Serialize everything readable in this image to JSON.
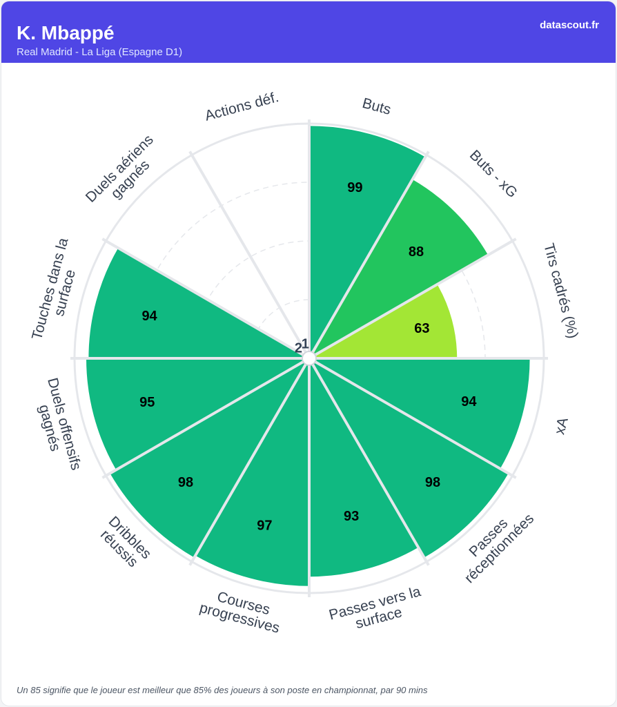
{
  "header": {
    "player": "K. Mbappé",
    "team_league": "Real Madrid - La Liga (Espagne D1)",
    "brand": "datascout.fr"
  },
  "footer": {
    "note": "Un 85 signifie que le joueur est meilleur que 85% des joueurs à son poste en championnat, par 90 mins"
  },
  "chart_data": {
    "type": "pizza",
    "range": [
      0,
      100
    ],
    "grid": true,
    "categories": [
      {
        "label": [
          "Buts"
        ],
        "value": 99,
        "color": "#10b981"
      },
      {
        "label": [
          "Buts - xG"
        ],
        "value": 88,
        "color": "#22c55e"
      },
      {
        "label": [
          "Tirs cadrés (%)"
        ],
        "value": 63,
        "color": "#a3e635"
      },
      {
        "label": [
          "xA"
        ],
        "value": 94,
        "color": "#10b981"
      },
      {
        "label": [
          "Passes",
          "réceptionnées"
        ],
        "value": 98,
        "color": "#10b981"
      },
      {
        "label": [
          "Passes vers la",
          "surface"
        ],
        "value": 93,
        "color": "#10b981"
      },
      {
        "label": [
          "Courses",
          "progressives"
        ],
        "value": 97,
        "color": "#10b981"
      },
      {
        "label": [
          "Dribbles",
          "réussis"
        ],
        "value": 98,
        "color": "#10b981"
      },
      {
        "label": [
          "Duels offensifs",
          "gagnés"
        ],
        "value": 95,
        "color": "#10b981"
      },
      {
        "label": [
          "Touches dans la",
          "surface"
        ],
        "value": 94,
        "color": "#10b981"
      },
      {
        "label": [
          "Duels aériens",
          "gagnés"
        ],
        "value": 2,
        "color": "#ef4444"
      },
      {
        "label": [
          "Actions déf."
        ],
        "value": 1,
        "color": "#ef4444"
      }
    ]
  }
}
